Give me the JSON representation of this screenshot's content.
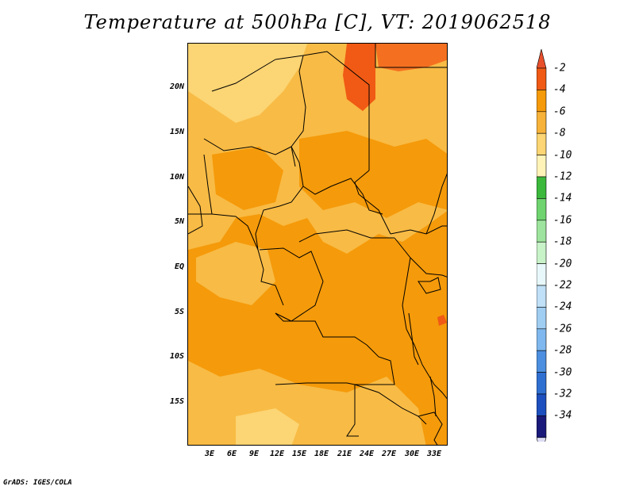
{
  "title": "Temperature at 500hPa [C], VT: 2019062518",
  "credit": "GrADS: IGES/COLA",
  "map": {
    "variable": "Temperature at 500hPa",
    "units": "C",
    "valid_time": "2019062518",
    "lat_labels": [
      "20N",
      "15N",
      "10N",
      "5N",
      "EQ",
      "5S",
      "10S",
      "15S"
    ],
    "lon_labels": [
      "3E",
      "6E",
      "9E",
      "12E",
      "15E",
      "18E",
      "21E",
      "24E",
      "27E",
      "30E",
      "33E"
    ]
  },
  "colorbar": {
    "labels": [
      "-2",
      "-4",
      "-6",
      "-8",
      "-10",
      "-12",
      "-14",
      "-16",
      "-18",
      "-20",
      "-22",
      "-24",
      "-26",
      "-28",
      "-30",
      "-32",
      "-34"
    ],
    "colors": [
      "#f05a14",
      "#f59a0a",
      "#f7b23a",
      "#fcd574",
      "#fff3b8",
      "#3cb83c",
      "#6fd46f",
      "#9ee49e",
      "#c8f2c8",
      "#e8f8fa",
      "#bfe0f6",
      "#a0cdf2",
      "#7fb8ee",
      "#4c8fe0",
      "#2f6fd2",
      "#1d4fbe",
      "#1a1a7a"
    ],
    "top_arrow_color": "#e8502c",
    "bottom_arrow_color": "#dcdcf5"
  },
  "shading": {
    "dominant": "#f59a0a",
    "light": "#f8bb45",
    "pale": "#fcd574",
    "warm": "#f05a14"
  }
}
